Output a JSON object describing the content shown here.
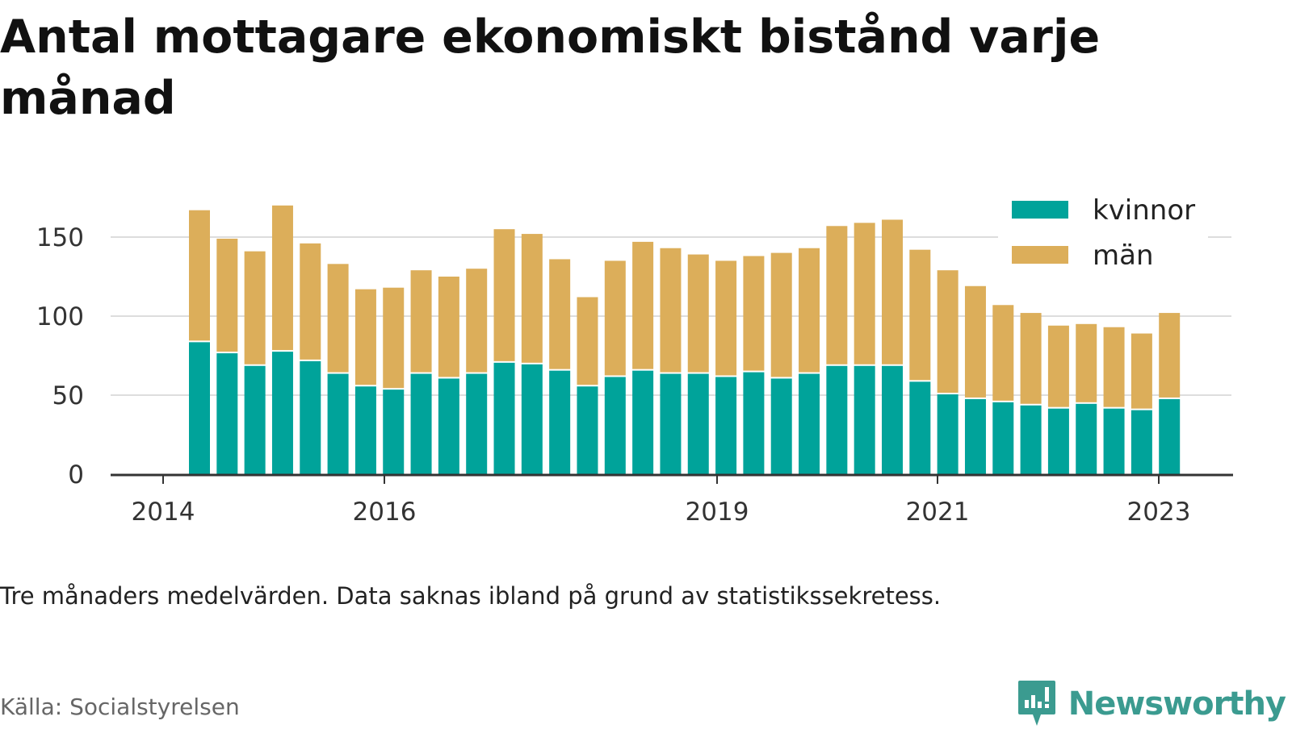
{
  "title": "Antal mottagare ekonomiskt bistånd varje månad",
  "note": "Tre månaders medelvärden. Data saknas ibland på grund av statistikssekretess.",
  "source": "Källa: Socialstyrelsen",
  "brand": "Newsworthy",
  "colors": {
    "kvinnor": "#00a39a",
    "man": "#dcae5a",
    "axis": "#333333",
    "grid": "#dddddd",
    "brand": "#3b9b90"
  },
  "chart_data": {
    "type": "bar",
    "stacked": true,
    "grid": true,
    "legend_position": "top-right",
    "x_ticks": [
      "2014",
      "2016",
      "2019",
      "2021",
      "2023"
    ],
    "y_ticks": [
      0,
      50,
      100,
      150
    ],
    "ylim": [
      0,
      175
    ],
    "series": [
      {
        "name": "kvinnor",
        "color": "#00a39a",
        "values": [
          84,
          77,
          69,
          78,
          72,
          64,
          56,
          54,
          64,
          61,
          64,
          71,
          70,
          66,
          56,
          62,
          66,
          64,
          64,
          62,
          65,
          61,
          64,
          69,
          69,
          69,
          59,
          51,
          48,
          46,
          44,
          42,
          45,
          42,
          41,
          48
        ]
      },
      {
        "name": "män",
        "color": "#dcae5a",
        "values": [
          83,
          72,
          72,
          92,
          74,
          69,
          61,
          64,
          65,
          64,
          66,
          84,
          82,
          70,
          56,
          73,
          81,
          79,
          75,
          73,
          73,
          79,
          79,
          88,
          90,
          92,
          83,
          78,
          71,
          61,
          58,
          52,
          50,
          51,
          48,
          54
        ]
      }
    ]
  }
}
